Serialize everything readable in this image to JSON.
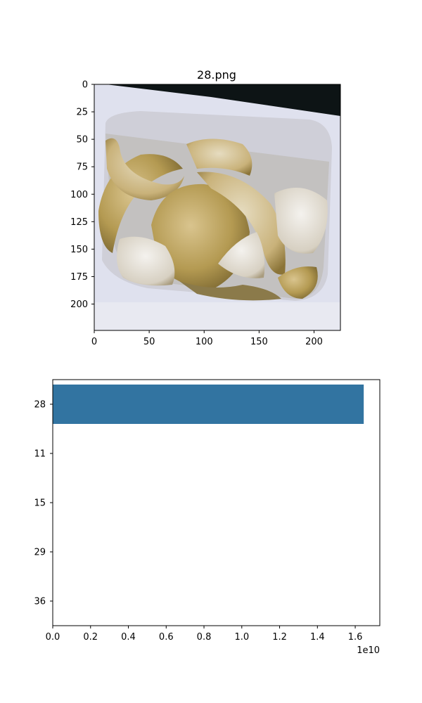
{
  "chart_data": [
    {
      "type": "image",
      "title": "28.png",
      "image_description": "photo of cooked onion slices in a white square container",
      "xlim": [
        0,
        224
      ],
      "ylim": [
        224,
        0
      ],
      "xticks": [
        0,
        50,
        100,
        150,
        200
      ],
      "yticks": [
        0,
        25,
        50,
        75,
        100,
        125,
        150,
        175,
        200
      ]
    },
    {
      "type": "bar",
      "orientation": "horizontal",
      "categories": [
        "28",
        "11",
        "15",
        "29",
        "36"
      ],
      "values": [
        16450000000,
        0,
        0,
        0,
        0
      ],
      "xlim": [
        0,
        17300000000
      ],
      "xticks": [
        0,
        0.2,
        0.4,
        0.6,
        0.8,
        1.0,
        1.2,
        1.4,
        1.6
      ],
      "xtick_labels": [
        "0.0",
        "0.2",
        "0.4",
        "0.6",
        "0.8",
        "1.0",
        "1.2",
        "1.4",
        "1.6"
      ],
      "x_offset_label": "1e10",
      "bar_color": "#3274a1",
      "grid": false
    }
  ]
}
